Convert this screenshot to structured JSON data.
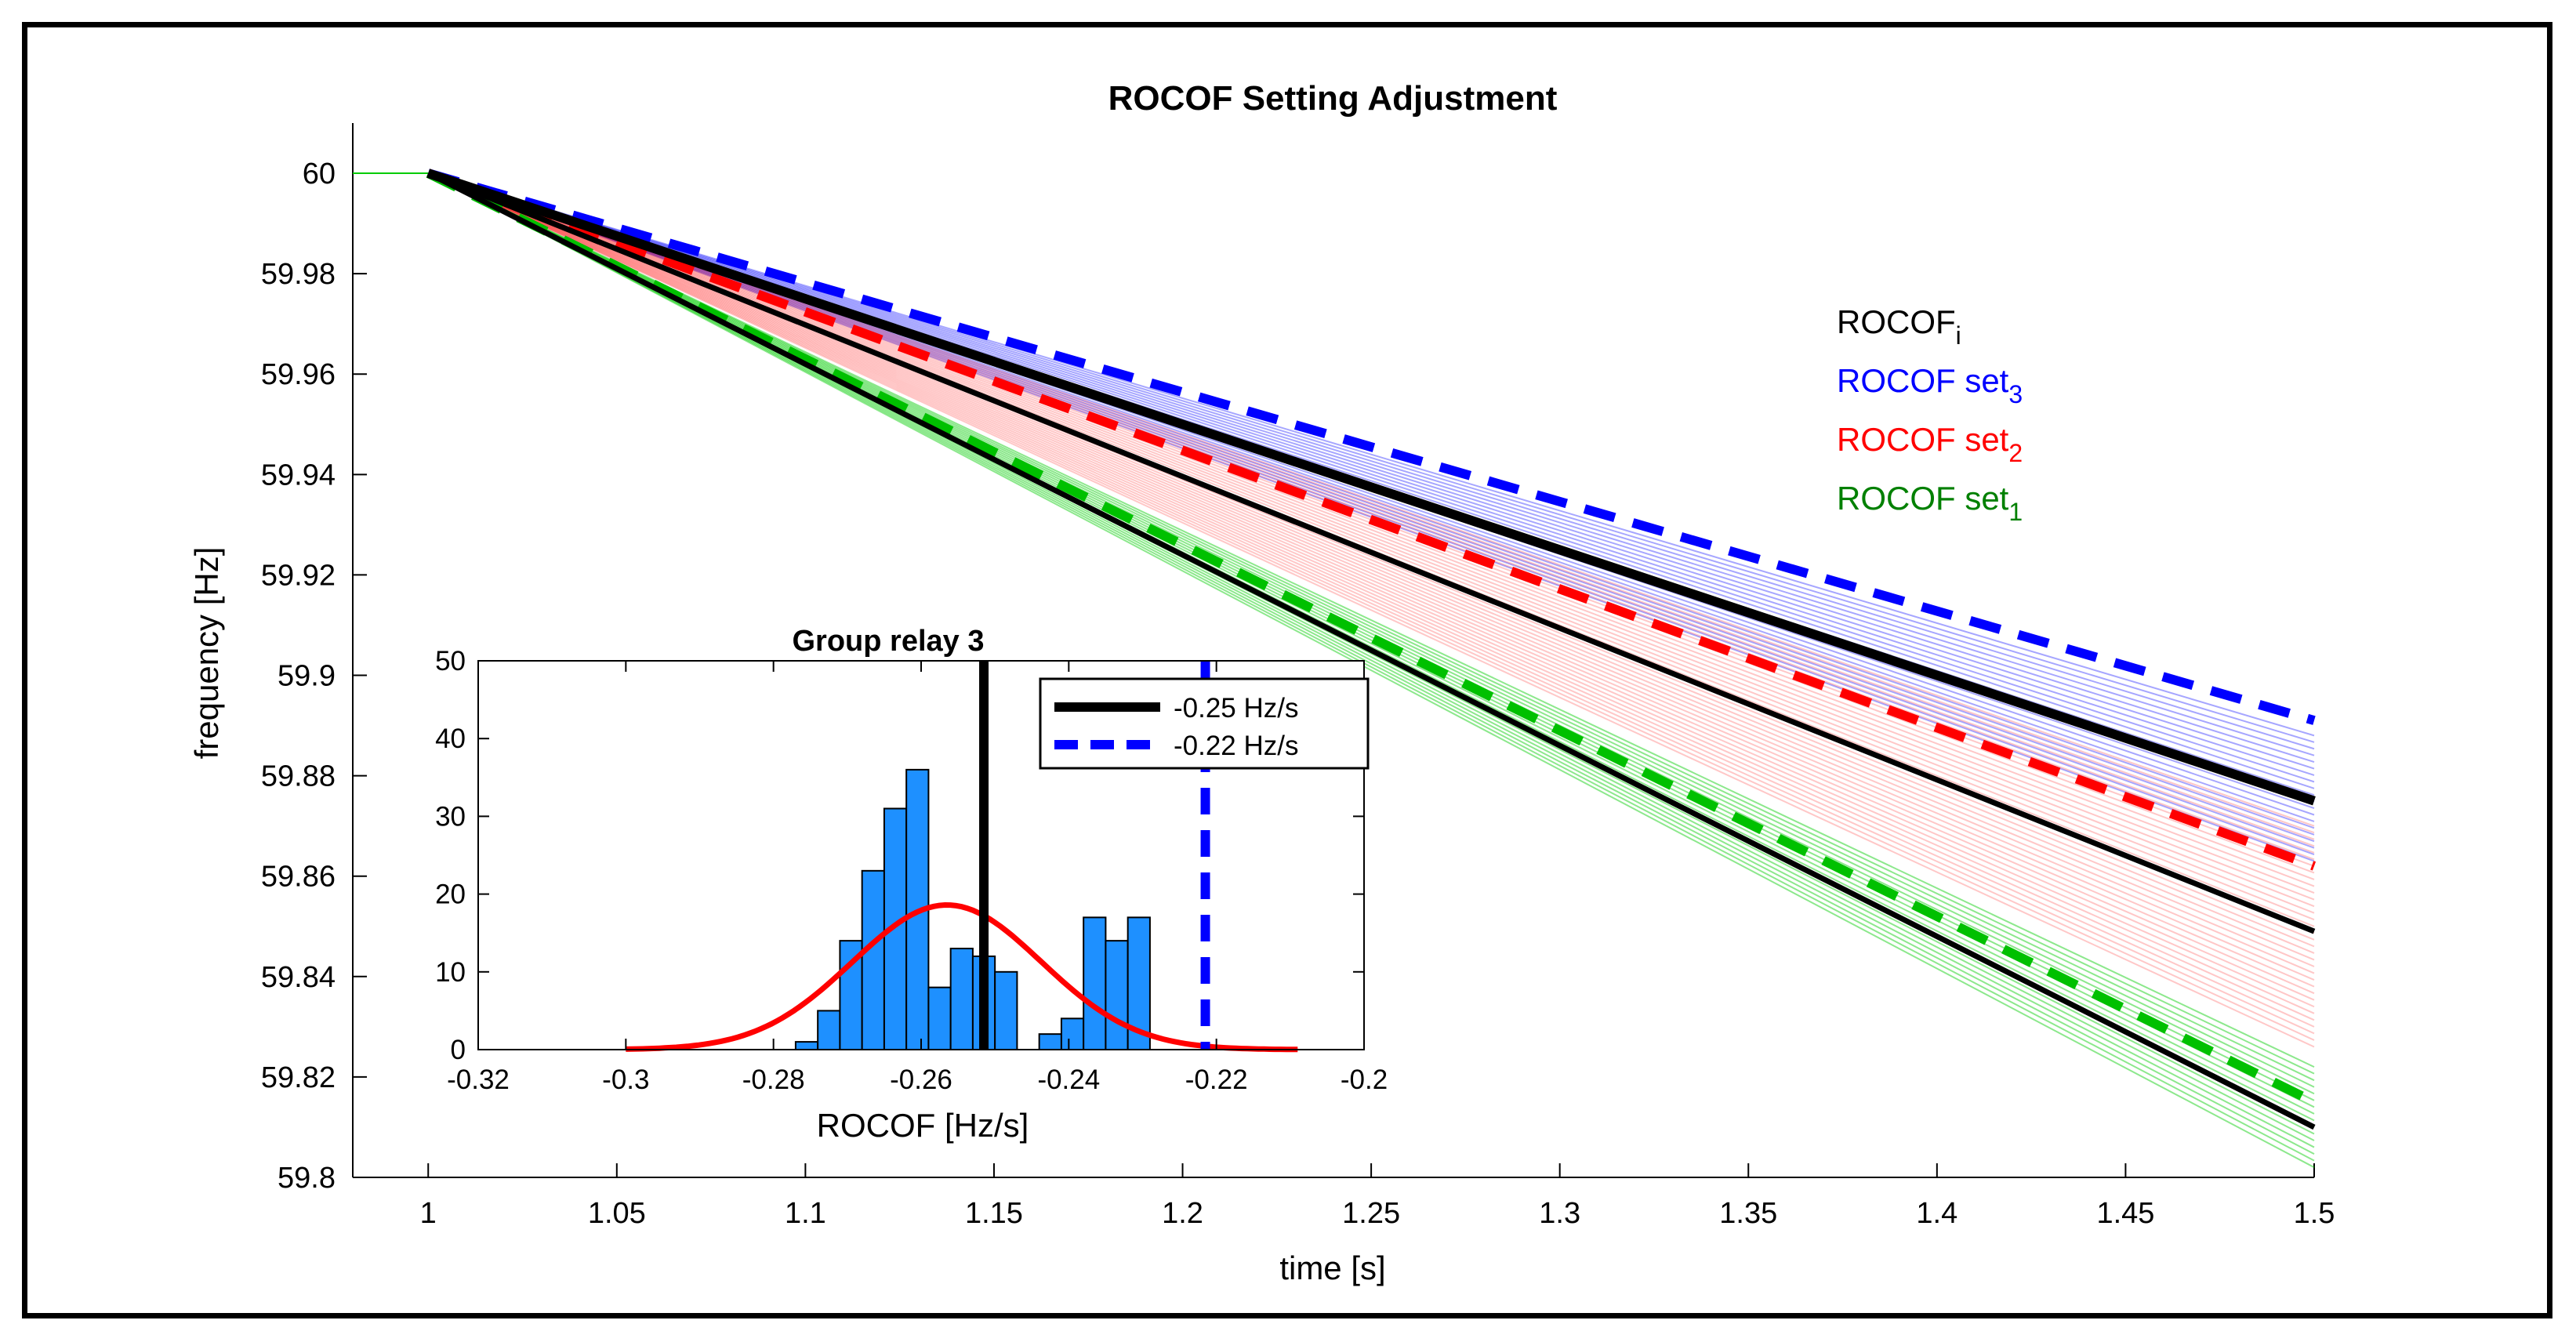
{
  "chart_data": [
    {
      "type": "line",
      "title": "ROCOF Setting Adjustment",
      "xlabel": "time [s]",
      "ylabel": "frequency [Hz]",
      "xlim": [
        0.98,
        1.5
      ],
      "ylim": [
        59.8,
        60.01
      ],
      "xticks": [
        "1",
        "1.05",
        "1.1",
        "1.15",
        "1.2",
        "1.25",
        "1.3",
        "1.35",
        "1.4",
        "1.45",
        "1.5"
      ],
      "yticks": [
        "60",
        "59.98",
        "59.96",
        "59.94",
        "59.92",
        "59.9",
        "59.88",
        "59.86",
        "59.84",
        "59.82",
        "59.8"
      ],
      "grid": false,
      "legend_position": "right",
      "legend": [
        {
          "text": "ROCOF",
          "sub": "i",
          "color": "#000000"
        },
        {
          "text": "ROCOF set",
          "sub": "3",
          "color": "#0000ff"
        },
        {
          "text": "ROCOF set",
          "sub": "2",
          "color": "#ff0000"
        },
        {
          "text": "ROCOF set",
          "sub": "1",
          "color": "#008000"
        }
      ],
      "series": [
        {
          "label": "ROCOF set3 threshold",
          "style": "dashed",
          "color": "#0000ff",
          "x": [
            1.0,
            1.5
          ],
          "y": [
            60.0,
            59.891
          ]
        },
        {
          "label": "ROCOF set2 threshold",
          "style": "dashed",
          "color": "#ff0000",
          "x": [
            1.0,
            1.5
          ],
          "y": [
            60.0,
            59.862
          ]
        },
        {
          "label": "ROCOF set1 threshold",
          "style": "dashed",
          "color": "#00c000",
          "x": [
            1.0,
            1.5
          ],
          "y": [
            60.0,
            59.815
          ]
        },
        {
          "label": "ROCOF_i (set3 group)",
          "style": "solid-thick",
          "color": "#000000",
          "x": [
            1.0,
            1.5
          ],
          "y": [
            60.0,
            59.875
          ]
        },
        {
          "label": "ROCOF_i (set2 group)",
          "style": "solid",
          "color": "#000000",
          "x": [
            1.0,
            1.5
          ],
          "y": [
            60.0,
            59.849
          ]
        },
        {
          "label": "ROCOF_i (set1 group)",
          "style": "solid",
          "color": "#000000",
          "x": [
            1.0,
            1.5
          ],
          "y": [
            60.0,
            59.81
          ]
        }
      ],
      "bundles": [
        {
          "color": "#0000ff",
          "opacity": 0.35,
          "x0": 1.0,
          "y0": 60.0,
          "x1": 1.5,
          "y1_min": 59.863,
          "y1_max": 59.888,
          "count": 20
        },
        {
          "color": "#ff0000",
          "opacity": 0.22,
          "x0": 1.0,
          "y0": 60.0,
          "x1": 1.5,
          "y1_min": 59.826,
          "y1_max": 59.87,
          "count": 34
        },
        {
          "color": "#00cc00",
          "opacity": 0.45,
          "x0": 1.0,
          "y0": 60.0,
          "x1": 1.5,
          "y1_min": 59.802,
          "y1_max": 59.822,
          "count": 16
        }
      ],
      "pre_event": {
        "color": "#00cc00",
        "x": [
          0.98,
          1.0
        ],
        "y": [
          60.0,
          60.0
        ]
      }
    },
    {
      "type": "bar",
      "title": "Group relay 3",
      "xlabel": "ROCOF [Hz/s]",
      "xlim": [
        -0.32,
        -0.2
      ],
      "ylim": [
        0,
        50
      ],
      "xticks": [
        "-0.32",
        "-0.3",
        "-0.28",
        "-0.26",
        "-0.24",
        "-0.22",
        "-0.2"
      ],
      "yticks": [
        "50",
        "40",
        "30",
        "20",
        "10",
        "0"
      ],
      "bin_width": 0.003,
      "bins": [
        {
          "left": -0.277,
          "value": 1
        },
        {
          "left": -0.274,
          "value": 5
        },
        {
          "left": -0.271,
          "value": 14
        },
        {
          "left": -0.268,
          "value": 23
        },
        {
          "left": -0.265,
          "value": 31
        },
        {
          "left": -0.262,
          "value": 36
        },
        {
          "left": -0.259,
          "value": 8
        },
        {
          "left": -0.256,
          "value": 13
        },
        {
          "left": -0.253,
          "value": 12
        },
        {
          "left": -0.25,
          "value": 10
        },
        {
          "left": -0.244,
          "value": 2
        },
        {
          "left": -0.241,
          "value": 4
        },
        {
          "left": -0.238,
          "value": 17
        },
        {
          "left": -0.235,
          "value": 14
        },
        {
          "left": -0.232,
          "value": 17
        }
      ],
      "fit_curve": {
        "color": "#ff0000",
        "mean": -0.2565,
        "sigma": 0.0128,
        "peak": 18.6,
        "x_range": [
          -0.3,
          -0.209
        ]
      },
      "vlines": [
        {
          "label": "-0.25 Hz/s",
          "x": -0.2515,
          "color": "#000000",
          "style": "solid"
        },
        {
          "label": "-0.22 Hz/s",
          "x": -0.2215,
          "color": "#0000ff",
          "style": "dashed"
        }
      ],
      "bar_color": "#1e90ff",
      "legend_position": "top-right"
    }
  ]
}
